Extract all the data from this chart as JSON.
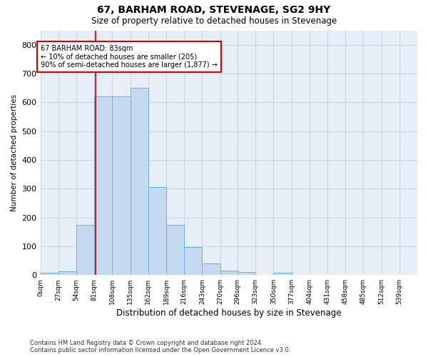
{
  "title1": "67, BARHAM ROAD, STEVENAGE, SG2 9HY",
  "title2": "Size of property relative to detached houses in Stevenage",
  "xlabel": "Distribution of detached houses by size in Stevenage",
  "ylabel": "Number of detached properties",
  "footnote": "Contains HM Land Registry data © Crown copyright and database right 2024.\nContains public sector information licensed under the Open Government Licence v3.0.",
  "bin_starts": [
    0,
    27,
    54,
    81,
    108,
    135,
    162,
    189,
    216,
    243,
    270,
    296,
    323,
    350,
    377,
    404,
    431,
    458,
    485,
    512
  ],
  "bin_width": 27,
  "bar_heights": [
    8,
    13,
    175,
    620,
    620,
    650,
    305,
    175,
    97,
    40,
    15,
    10,
    0,
    8,
    0,
    0,
    0,
    0,
    0,
    0
  ],
  "bar_color": "#c5d9f0",
  "bar_edge_color": "#6baed6",
  "grid_color": "#c8d4e8",
  "bg_color": "#e8eef8",
  "vline_x": 83,
  "vline_color": "#cc0000",
  "annotation_line1": "67 BARHAM ROAD: 83sqm",
  "annotation_line2": "← 10% of detached houses are smaller (205)",
  "annotation_line3": "90% of semi-detached houses are larger (1,877) →",
  "annotation_box_color": "#cc0000",
  "ylim": [
    0,
    850
  ],
  "yticks": [
    0,
    100,
    200,
    300,
    400,
    500,
    600,
    700,
    800
  ],
  "tick_labels": [
    "0sqm",
    "27sqm",
    "54sqm",
    "81sqm",
    "108sqm",
    "135sqm",
    "162sqm",
    "189sqm",
    "216sqm",
    "243sqm",
    "270sqm",
    "296sqm",
    "323sqm",
    "350sqm",
    "377sqm",
    "404sqm",
    "431sqm",
    "458sqm",
    "485sqm",
    "512sqm",
    "539sqm"
  ]
}
